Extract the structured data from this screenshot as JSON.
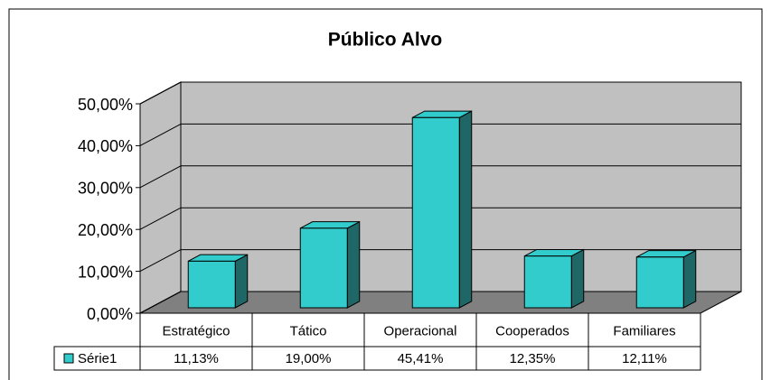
{
  "chart_data": {
    "type": "bar3d",
    "title": "Público Alvo",
    "categories": [
      "Estratégico",
      "Tático",
      "Operacional",
      "Cooperados",
      "Familiares"
    ],
    "series": [
      {
        "name": "Série1",
        "color": "#33cccc",
        "values": [
          11.13,
          19.0,
          45.41,
          12.35,
          12.11
        ],
        "value_labels": [
          "11,13%",
          "19,00%",
          "45,41%",
          "12,35%",
          "12,11%"
        ]
      }
    ],
    "ylim": [
      0,
      50
    ],
    "yticks": [
      {
        "value": 0,
        "label": "0,00%"
      },
      {
        "value": 10,
        "label": "10,00%"
      },
      {
        "value": 20,
        "label": "20,00%"
      },
      {
        "value": 30,
        "label": "30,00%"
      },
      {
        "value": 40,
        "label": "40,00%"
      },
      {
        "value": 50,
        "label": "50,00%"
      }
    ],
    "grid": true,
    "data_table": true
  }
}
